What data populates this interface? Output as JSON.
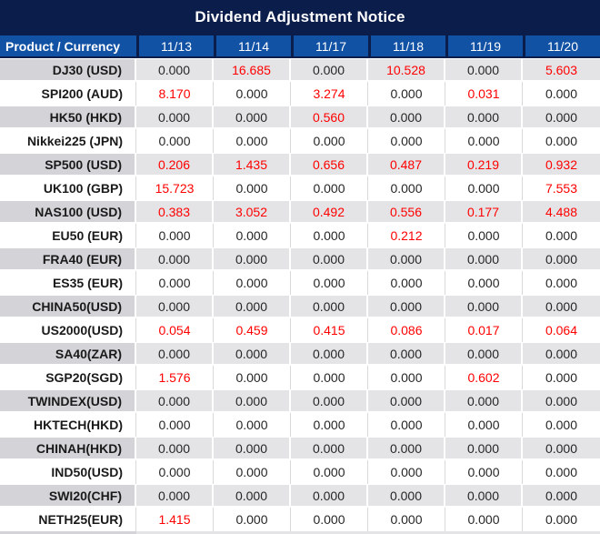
{
  "title": "Dividend Adjustment Notice",
  "colors": {
    "title_bg": "#0b1e4b",
    "header_bg": "#1252a5",
    "header_border": "#0b1e4b",
    "row_gray_product": "#d3d3d8",
    "row_gray_value": "#e4e4e6",
    "row_separator": "#d9d9d9",
    "value_zero": "#262626",
    "value_nonzero": "#ff0000",
    "text_white": "#ffffff"
  },
  "table": {
    "product_header": "Product / Currency",
    "date_headers": [
      "11/13",
      "11/14",
      "11/17",
      "11/18",
      "11/19",
      "11/20"
    ],
    "rows": [
      {
        "product": "DJ30 (USD)",
        "values": [
          "0.000",
          "16.685",
          "0.000",
          "10.528",
          "0.000",
          "5.603"
        ]
      },
      {
        "product": "SPI200 (AUD)",
        "values": [
          "8.170",
          "0.000",
          "3.274",
          "0.000",
          "0.031",
          "0.000"
        ]
      },
      {
        "product": "HK50 (HKD)",
        "values": [
          "0.000",
          "0.000",
          "0.560",
          "0.000",
          "0.000",
          "0.000"
        ]
      },
      {
        "product": "Nikkei225 (JPN)",
        "values": [
          "0.000",
          "0.000",
          "0.000",
          "0.000",
          "0.000",
          "0.000"
        ]
      },
      {
        "product": "SP500 (USD)",
        "values": [
          "0.206",
          "1.435",
          "0.656",
          "0.487",
          "0.219",
          "0.932"
        ]
      },
      {
        "product": "UK100 (GBP)",
        "values": [
          "15.723",
          "0.000",
          "0.000",
          "0.000",
          "0.000",
          "7.553"
        ]
      },
      {
        "product": "NAS100 (USD)",
        "values": [
          "0.383",
          "3.052",
          "0.492",
          "0.556",
          "0.177",
          "4.488"
        ]
      },
      {
        "product": "EU50 (EUR)",
        "values": [
          "0.000",
          "0.000",
          "0.000",
          "0.212",
          "0.000",
          "0.000"
        ]
      },
      {
        "product": "FRA40 (EUR)",
        "values": [
          "0.000",
          "0.000",
          "0.000",
          "0.000",
          "0.000",
          "0.000"
        ]
      },
      {
        "product": "ES35 (EUR)",
        "values": [
          "0.000",
          "0.000",
          "0.000",
          "0.000",
          "0.000",
          "0.000"
        ]
      },
      {
        "product": "CHINA50(USD)",
        "values": [
          "0.000",
          "0.000",
          "0.000",
          "0.000",
          "0.000",
          "0.000"
        ]
      },
      {
        "product": "US2000(USD)",
        "values": [
          "0.054",
          "0.459",
          "0.415",
          "0.086",
          "0.017",
          "0.064"
        ]
      },
      {
        "product": "SA40(ZAR)",
        "values": [
          "0.000",
          "0.000",
          "0.000",
          "0.000",
          "0.000",
          "0.000"
        ]
      },
      {
        "product": "SGP20(SGD)",
        "values": [
          "1.576",
          "0.000",
          "0.000",
          "0.000",
          "0.602",
          "0.000"
        ]
      },
      {
        "product": "TWINDEX(USD)",
        "values": [
          "0.000",
          "0.000",
          "0.000",
          "0.000",
          "0.000",
          "0.000"
        ]
      },
      {
        "product": "HKTECH(HKD)",
        "values": [
          "0.000",
          "0.000",
          "0.000",
          "0.000",
          "0.000",
          "0.000"
        ]
      },
      {
        "product": "CHINAH(HKD)",
        "values": [
          "0.000",
          "0.000",
          "0.000",
          "0.000",
          "0.000",
          "0.000"
        ]
      },
      {
        "product": "IND50(USD)",
        "values": [
          "0.000",
          "0.000",
          "0.000",
          "0.000",
          "0.000",
          "0.000"
        ]
      },
      {
        "product": "SWI20(CHF)",
        "values": [
          "0.000",
          "0.000",
          "0.000",
          "0.000",
          "0.000",
          "0.000"
        ]
      },
      {
        "product": "NETH25(EUR)",
        "values": [
          "1.415",
          "0.000",
          "0.000",
          "0.000",
          "0.000",
          "0.000"
        ]
      }
    ]
  }
}
